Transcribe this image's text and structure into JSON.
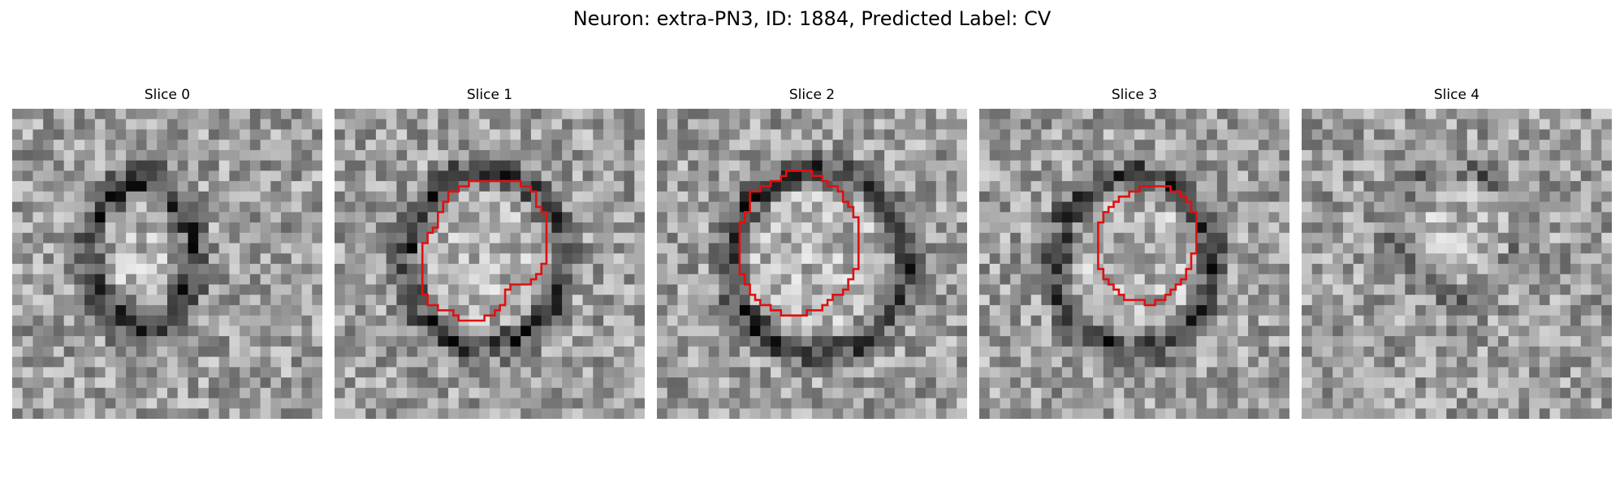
{
  "figure": {
    "title": "Neuron: extra-PN3, ID: 1884, Predicted Label: CV"
  },
  "panels": [
    {
      "title": "Slice 0",
      "has_outline": false,
      "ring": [
        0.42,
        0.58,
        0.62,
        0.65
      ],
      "noise_seed": 11
    },
    {
      "title": "Slice 1",
      "has_outline": true,
      "ring": [
        0.52,
        0.55,
        0.47,
        0.4
      ],
      "noise_seed": 23
    },
    {
      "title": "Slice 2",
      "has_outline": true,
      "ring": [
        0.52,
        0.47,
        0.5,
        0.38
      ],
      "noise_seed": 37
    },
    {
      "title": "Slice 3",
      "has_outline": true,
      "ring": [
        0.5,
        0.52,
        0.48,
        0.4
      ],
      "noise_seed": 53
    },
    {
      "title": "Slice 4",
      "has_outline": false,
      "ring": [
        0.5,
        0.5,
        0.45,
        0.42
      ],
      "noise_seed": 71
    }
  ],
  "colors": {
    "outline": "#e01010"
  }
}
